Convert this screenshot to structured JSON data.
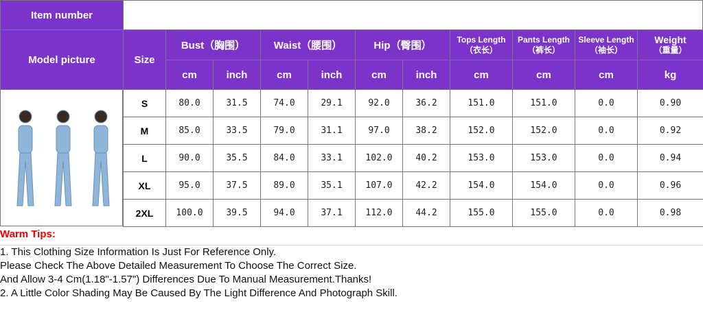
{
  "header": {
    "item_number_label": "Item number",
    "model_picture_label": "Model picture",
    "size_label": "Size",
    "columns": [
      {
        "name": [
          "Bust（胸围）"
        ],
        "units": [
          "cm",
          "inch"
        ]
      },
      {
        "name": [
          "Waist（腰围）"
        ],
        "units": [
          "cm",
          "inch"
        ]
      },
      {
        "name": [
          "Hip（臀围）"
        ],
        "units": [
          "cm",
          "inch"
        ]
      },
      {
        "name": [
          "Tops Length",
          "（衣长）"
        ],
        "units": [
          "cm"
        ]
      },
      {
        "name": [
          "Pants Length",
          "（裤长）"
        ],
        "units": [
          "cm"
        ]
      },
      {
        "name": [
          "Sleeve Length",
          "（袖长）"
        ],
        "units": [
          "cm"
        ]
      },
      {
        "name": [
          "Weight",
          "（重量）"
        ],
        "units": [
          "kg"
        ]
      }
    ]
  },
  "table": {
    "rows": [
      {
        "size": "S",
        "cells": [
          "80.0",
          "31.5",
          "74.0",
          "29.1",
          "92.0",
          "36.2",
          "151.0",
          "151.0",
          "0.0",
          "0.90"
        ]
      },
      {
        "size": "M",
        "cells": [
          "85.0",
          "33.5",
          "79.0",
          "31.1",
          "97.0",
          "38.2",
          "152.0",
          "152.0",
          "0.0",
          "0.92"
        ]
      },
      {
        "size": "L",
        "cells": [
          "90.0",
          "35.5",
          "84.0",
          "33.1",
          "102.0",
          "40.2",
          "153.0",
          "153.0",
          "0.0",
          "0.94"
        ]
      },
      {
        "size": "XL",
        "cells": [
          "95.0",
          "37.5",
          "89.0",
          "35.1",
          "107.0",
          "42.2",
          "154.0",
          "154.0",
          "0.0",
          "0.96"
        ]
      },
      {
        "size": "2XL",
        "cells": [
          "100.0",
          "39.5",
          "94.0",
          "37.1",
          "112.0",
          "44.2",
          "155.0",
          "155.0",
          "0.0",
          "0.98"
        ]
      }
    ]
  },
  "tips": {
    "title": "Warm Tips:",
    "lines": [
      "1. This Clothing Size Information Is Just For Reference Only.",
      "Please Check The Above Detailed Measurement To Choose The Correct Size.",
      "And Allow 3-4 Cm(1.18\"-1.57\") Differences Due To Manual Measurement.Thanks!",
      "2. A Little Color Shading May Be Caused By The Light Difference And Photograph Skill."
    ]
  }
}
